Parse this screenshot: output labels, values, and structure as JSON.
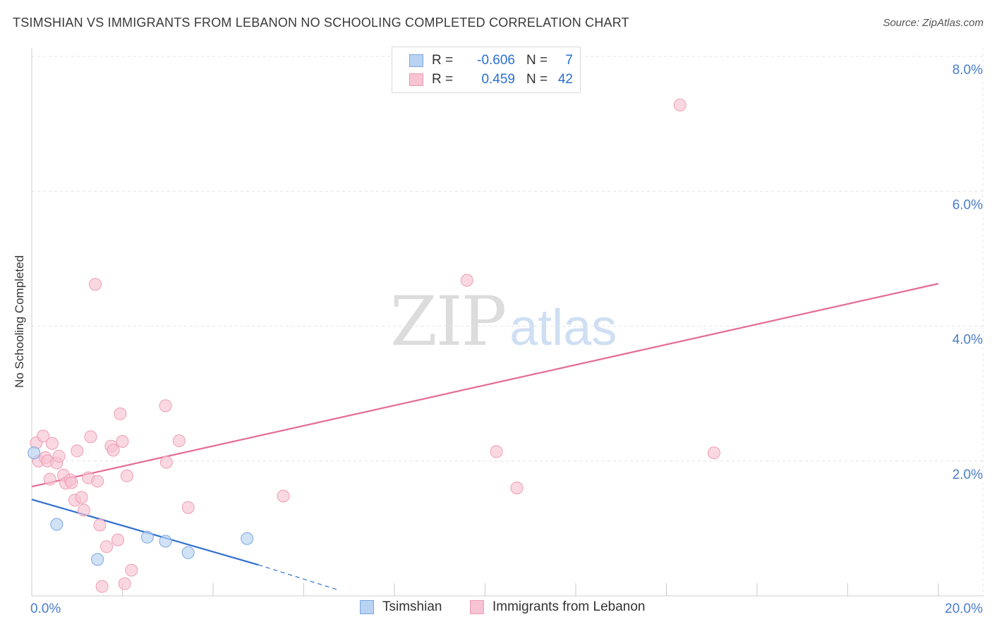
{
  "title": "TSIMSHIAN VS IMMIGRANTS FROM LEBANON NO SCHOOLING COMPLETED CORRELATION CHART",
  "source": "Source: ZipAtlas.com",
  "watermark": {
    "zip": "ZIP",
    "atlas": "atlas"
  },
  "colors": {
    "tsimshian_fill": "#b9d3f3",
    "tsimshian_stroke": "#7aa7e0",
    "tsimshian_line": "#2f6fcf",
    "lebanon_fill": "#f8c3d2",
    "lebanon_stroke": "#ee9db4",
    "lebanon_line": "#e56b93",
    "grid": "#e4e4e4",
    "tick_text": "#4a7ec9"
  },
  "legend": {
    "rows": [
      {
        "series": "Tsimshian",
        "r_label": "R =",
        "r_value": "-0.606",
        "n_label": "N =",
        "n_value": "7"
      },
      {
        "series": "Immigrants from Lebanon",
        "r_label": "R =",
        "r_value": "0.459",
        "n_label": "N =",
        "n_value": "42"
      }
    ]
  },
  "bottom_legend": [
    "Tsimshian",
    "Immigrants from Lebanon"
  ],
  "chart_data": {
    "type": "scatter",
    "title": "TSIMSHIAN VS IMMIGRANTS FROM LEBANON NO SCHOOLING COMPLETED CORRELATION CHART",
    "xlabel": "",
    "ylabel": "No Schooling Completed",
    "xlim": [
      0,
      20
    ],
    "ylim": [
      0,
      8
    ],
    "x_tick_labels": [
      "0.0%",
      "20.0%"
    ],
    "y_ticks": [
      2,
      4,
      6,
      8
    ],
    "y_tick_labels": [
      "2.0%",
      "4.0%",
      "6.0%",
      "8.0%"
    ],
    "grid": true,
    "legend_position": "top-center",
    "series": [
      {
        "name": "Tsimshian",
        "points": [
          {
            "x": 0.05,
            "y": 2.12
          },
          {
            "x": 0.55,
            "y": 1.06
          },
          {
            "x": 1.45,
            "y": 0.54
          },
          {
            "x": 2.55,
            "y": 0.87
          },
          {
            "x": 2.95,
            "y": 0.81
          },
          {
            "x": 3.45,
            "y": 0.64
          },
          {
            "x": 4.75,
            "y": 0.85
          }
        ],
        "trend": {
          "x0": 0,
          "y0": 1.43,
          "x1": 5.0,
          "y1": 0.46,
          "dash_to_x": 6.8,
          "dash_to_y": 0.08
        }
      },
      {
        "name": "Immigrants from Lebanon",
        "points": [
          {
            "x": 0.1,
            "y": 2.27
          },
          {
            "x": 0.15,
            "y": 2.0
          },
          {
            "x": 0.25,
            "y": 2.37
          },
          {
            "x": 0.3,
            "y": 2.05
          },
          {
            "x": 0.35,
            "y": 2.0
          },
          {
            "x": 0.4,
            "y": 1.73
          },
          {
            "x": 0.45,
            "y": 2.26
          },
          {
            "x": 0.55,
            "y": 1.97
          },
          {
            "x": 0.6,
            "y": 2.07
          },
          {
            "x": 0.7,
            "y": 1.79
          },
          {
            "x": 0.75,
            "y": 1.67
          },
          {
            "x": 0.85,
            "y": 1.72
          },
          {
            "x": 0.88,
            "y": 1.68
          },
          {
            "x": 0.95,
            "y": 1.42
          },
          {
            "x": 1.0,
            "y": 2.15
          },
          {
            "x": 1.1,
            "y": 1.46
          },
          {
            "x": 1.15,
            "y": 1.27
          },
          {
            "x": 1.25,
            "y": 1.75
          },
          {
            "x": 1.3,
            "y": 2.36
          },
          {
            "x": 1.4,
            "y": 4.62
          },
          {
            "x": 1.45,
            "y": 1.7
          },
          {
            "x": 1.5,
            "y": 1.05
          },
          {
            "x": 1.55,
            "y": 0.14
          },
          {
            "x": 1.65,
            "y": 0.73
          },
          {
            "x": 1.75,
            "y": 2.22
          },
          {
            "x": 1.8,
            "y": 2.16
          },
          {
            "x": 1.9,
            "y": 0.83
          },
          {
            "x": 1.95,
            "y": 2.7
          },
          {
            "x": 2.0,
            "y": 2.29
          },
          {
            "x": 2.1,
            "y": 1.78
          },
          {
            "x": 2.05,
            "y": 0.18
          },
          {
            "x": 2.2,
            "y": 0.38
          },
          {
            "x": 2.95,
            "y": 2.82
          },
          {
            "x": 2.97,
            "y": 1.98
          },
          {
            "x": 3.25,
            "y": 2.3
          },
          {
            "x": 3.45,
            "y": 1.31
          },
          {
            "x": 5.55,
            "y": 1.48
          },
          {
            "x": 9.6,
            "y": 4.68
          },
          {
            "x": 10.25,
            "y": 2.14
          },
          {
            "x": 10.7,
            "y": 1.6
          },
          {
            "x": 14.3,
            "y": 7.28
          },
          {
            "x": 15.05,
            "y": 2.12
          }
        ],
        "trend": {
          "x0": 0,
          "y0": 1.62,
          "x1": 20,
          "y1": 4.63
        }
      }
    ]
  }
}
